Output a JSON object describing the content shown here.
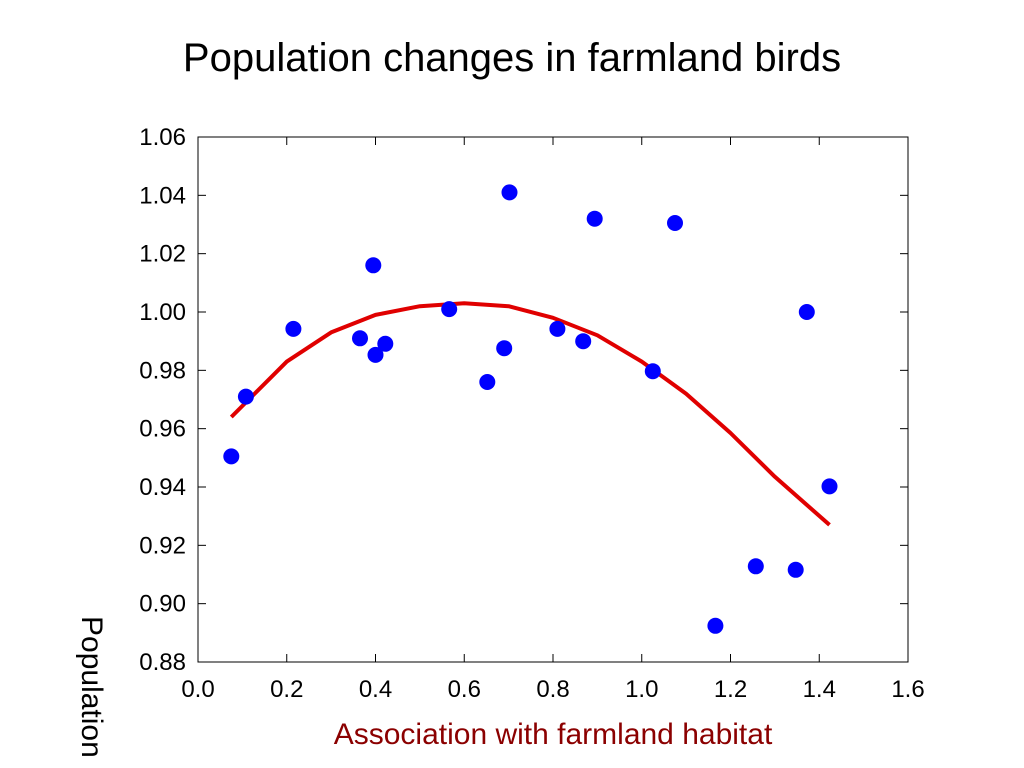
{
  "chart_data": {
    "type": "scatter",
    "title": "Population changes in farmland birds",
    "xlabel": "Association with farmland habitat",
    "ylabel": "Population",
    "xlim": [
      0.0,
      1.6
    ],
    "ylim": [
      0.88,
      1.06
    ],
    "x_ticks": [
      "0.0",
      "0.2",
      "0.4",
      "0.6",
      "0.8",
      "1.0",
      "1.2",
      "1.4",
      "1.6"
    ],
    "y_ticks": [
      "0.88",
      "0.90",
      "0.92",
      "0.94",
      "0.96",
      "0.98",
      "1.00",
      "1.02",
      "1.04",
      "1.06"
    ],
    "grid": false,
    "xlabel_color": "#8b0000",
    "point_color": "#0000ff",
    "fit_color": "#e00000",
    "series": [
      {
        "type": "scatter",
        "x": [
          0.075,
          0.108,
          0.215,
          0.365,
          0.395,
          0.4,
          0.422,
          0.566,
          0.652,
          0.69,
          0.702,
          0.81,
          0.868,
          0.894,
          1.025,
          1.075,
          1.166,
          1.257,
          1.347,
          1.372,
          1.423
        ],
        "y": [
          0.9505,
          0.971,
          0.9942,
          0.991,
          1.016,
          0.9853,
          0.9891,
          1.001,
          0.976,
          0.9876,
          1.041,
          0.9942,
          0.99,
          1.032,
          0.9797,
          1.0305,
          0.8924,
          0.9128,
          0.9116,
          1.0,
          0.9402
        ]
      },
      {
        "type": "line",
        "x": [
          0.075,
          0.2,
          0.3,
          0.4,
          0.5,
          0.6,
          0.7,
          0.8,
          0.9,
          1.0,
          1.1,
          1.2,
          1.3,
          1.423
        ],
        "y": [
          0.964,
          0.983,
          0.993,
          0.999,
          1.002,
          1.003,
          1.002,
          0.998,
          0.992,
          0.983,
          0.972,
          0.9585,
          0.9435,
          0.927
        ]
      }
    ]
  }
}
